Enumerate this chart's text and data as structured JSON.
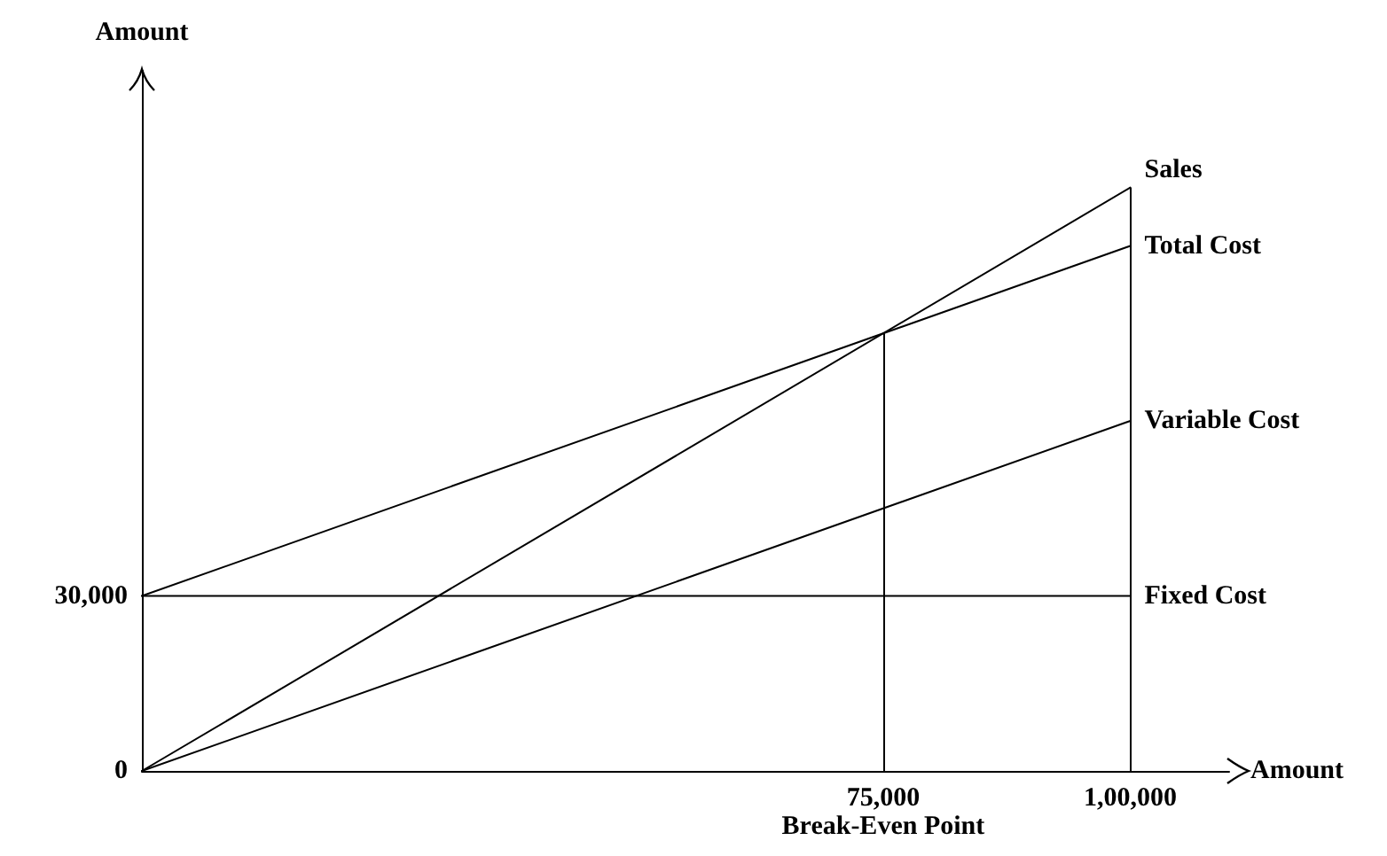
{
  "chart_data": {
    "type": "line",
    "xlabel": "Amount",
    "ylabel": "Amount",
    "xlim": [
      0,
      110000
    ],
    "ylim": [
      0,
      120000
    ],
    "xticks": [
      {
        "value": 75000,
        "label": "75,000"
      },
      {
        "value": 100000,
        "label": "1,00,000"
      }
    ],
    "yticks": [
      {
        "value": 0,
        "label": "0"
      },
      {
        "value": 30000,
        "label": "30,000"
      }
    ],
    "x": [
      0,
      100000
    ],
    "series": [
      {
        "name": "Sales",
        "color": "#000000",
        "values": [
          0,
          100000
        ]
      },
      {
        "name": "Total Cost",
        "color": "#000000",
        "values": [
          30000,
          90000
        ]
      },
      {
        "name": "Variable Cost",
        "color": "#000000",
        "values": [
          0,
          60000
        ]
      },
      {
        "name": "Fixed Cost",
        "color": "#000000",
        "values": [
          30000,
          30000
        ]
      }
    ],
    "ref_lines": [
      {
        "axis": "x",
        "value": 75000,
        "label": "Break-Even Point",
        "color": "#000000"
      },
      {
        "axis": "x",
        "value": 100000,
        "color": "#000000"
      }
    ],
    "grid": false,
    "legend": false,
    "marker": "none",
    "line_style": "solid"
  }
}
